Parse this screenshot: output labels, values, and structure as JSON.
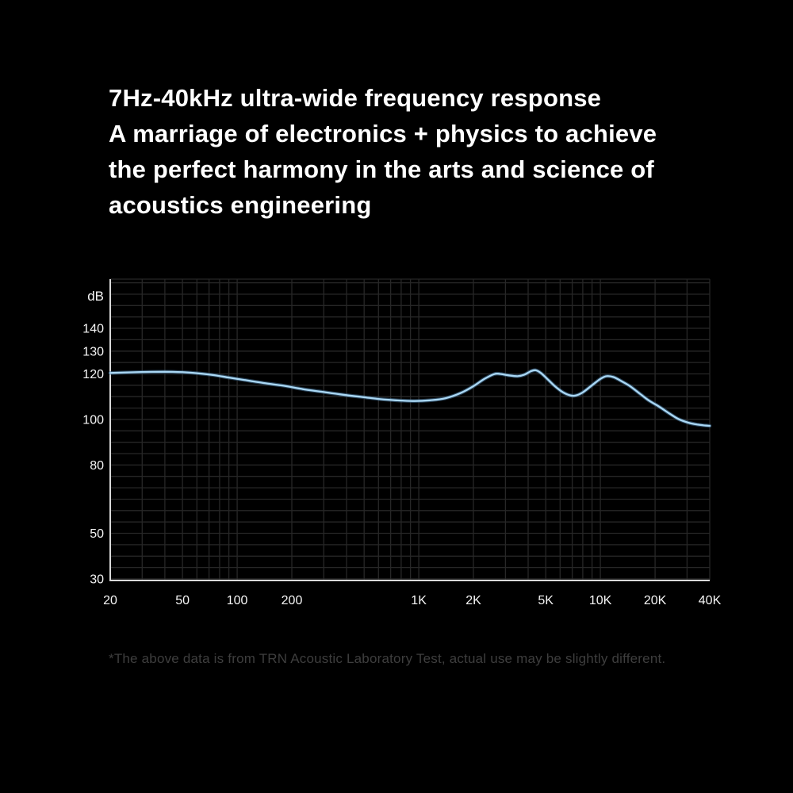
{
  "page": {
    "background_color": "#000000"
  },
  "heading": {
    "color": "#ffffff",
    "lines": [
      "7Hz-40kHz ultra-wide frequency response",
      "A marriage of electronics + physics to achieve",
      "the perfect harmony in the arts and science of",
      "acoustics engineering"
    ]
  },
  "chart_data": {
    "type": "line",
    "title": "",
    "ylabel": "dB",
    "xlabel": "",
    "x_scale": "log",
    "x_range_hz": [
      20,
      40000
    ],
    "y_range_db": [
      29.3,
      161.6
    ],
    "y_gridline_step_db": 5,
    "grid_on": true,
    "grid_color": "#272727",
    "axis_color": "#d9d9d9",
    "tick_label_color": "#f5f5f5",
    "y_axis_unit_label": "dB",
    "y_tick_labels": [
      {
        "db": 140,
        "label": "140"
      },
      {
        "db": 130,
        "label": "130"
      },
      {
        "db": 120,
        "label": "120"
      },
      {
        "db": 100,
        "label": "100"
      },
      {
        "db": 80,
        "label": "80"
      },
      {
        "db": 50,
        "label": "50"
      },
      {
        "db": 30,
        "label": "30"
      }
    ],
    "x_tick_labels": [
      {
        "hz": 20,
        "label": "20"
      },
      {
        "hz": 50,
        "label": "50"
      },
      {
        "hz": 100,
        "label": "100"
      },
      {
        "hz": 200,
        "label": "200"
      },
      {
        "hz": 1000,
        "label": "1K"
      },
      {
        "hz": 2000,
        "label": "2K"
      },
      {
        "hz": 5000,
        "label": "5K"
      },
      {
        "hz": 10000,
        "label": "10K"
      },
      {
        "hz": 20000,
        "label": "20K"
      },
      {
        "hz": 40000,
        "label": "40K"
      }
    ],
    "series": [
      {
        "name": "frequency-response-curve",
        "color": "#aad8f5",
        "glow_color": "#48799f",
        "points_hz_db": [
          [
            20,
            120.4
          ],
          [
            26,
            120.7
          ],
          [
            34,
            120.9
          ],
          [
            44,
            120.9
          ],
          [
            56,
            120.5
          ],
          [
            72,
            119.6
          ],
          [
            90,
            118.4
          ],
          [
            110,
            117.3
          ],
          [
            140,
            116.0
          ],
          [
            180,
            114.8
          ],
          [
            230,
            113.3
          ],
          [
            290,
            112.2
          ],
          [
            370,
            111.0
          ],
          [
            470,
            110.0
          ],
          [
            600,
            109.0
          ],
          [
            750,
            108.4
          ],
          [
            950,
            108.1
          ],
          [
            1150,
            108.4
          ],
          [
            1400,
            109.3
          ],
          [
            1700,
            111.6
          ],
          [
            2000,
            114.6
          ],
          [
            2300,
            117.8
          ],
          [
            2600,
            119.9
          ],
          [
            2800,
            120.0
          ],
          [
            3100,
            119.4
          ],
          [
            3500,
            119.0
          ],
          [
            3800,
            119.6
          ],
          [
            4150,
            121.2
          ],
          [
            4400,
            121.6
          ],
          [
            4700,
            120.4
          ],
          [
            5100,
            117.8
          ],
          [
            5600,
            114.7
          ],
          [
            6200,
            112.0
          ],
          [
            6800,
            110.6
          ],
          [
            7300,
            110.5
          ],
          [
            8000,
            111.9
          ],
          [
            9000,
            115.0
          ],
          [
            10000,
            117.8
          ],
          [
            10800,
            119.0
          ],
          [
            11800,
            118.6
          ],
          [
            13000,
            116.9
          ],
          [
            14500,
            114.7
          ],
          [
            16500,
            111.3
          ],
          [
            18500,
            108.3
          ],
          [
            21000,
            105.7
          ],
          [
            24000,
            102.6
          ],
          [
            27000,
            100.1
          ],
          [
            30500,
            98.6
          ],
          [
            34000,
            97.8
          ],
          [
            37000,
            97.4
          ],
          [
            40000,
            97.2
          ]
        ]
      }
    ]
  },
  "footnote": {
    "text": "*The above data is from TRN Acoustic Laboratory Test, actual use may be slightly different.",
    "color": "#3e3e3e"
  }
}
